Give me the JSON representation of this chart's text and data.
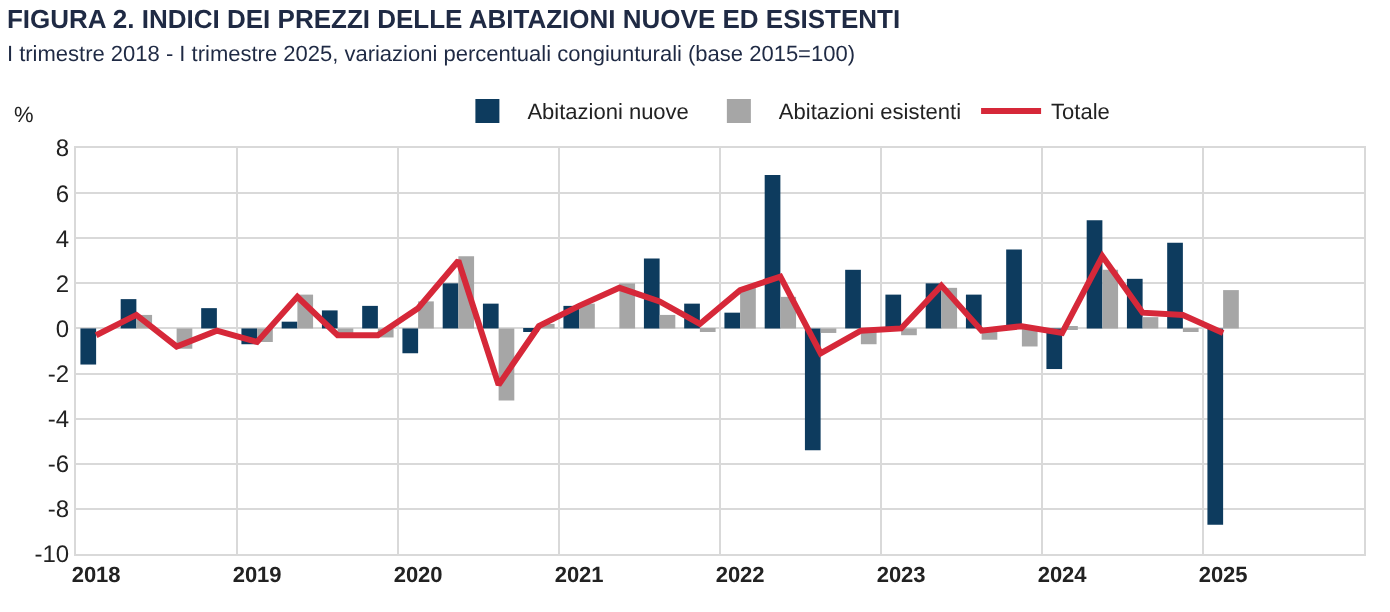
{
  "chart_data": {
    "type": "bar",
    "title": "FIGURA 2. INDICI DEI PREZZI DELLE ABITAZIONI NUOVE ED ESISTENTI",
    "subtitle": "I trimestre 2018 - I trimestre 2025, variazioni percentuali congiunturali (base 2015=100)",
    "ylabel": "%",
    "categories": [
      "2018",
      null,
      null,
      null,
      "2019",
      null,
      null,
      null,
      "2020",
      null,
      null,
      null,
      "2021",
      null,
      null,
      null,
      "2022",
      null,
      null,
      null,
      "2023",
      null,
      null,
      null,
      "2024",
      null,
      null,
      null,
      "2025"
    ],
    "series": [
      {
        "name": "Abitazioni nuove",
        "color": "#0d3b5e",
        "values": [
          -1.6,
          1.3,
          0.0,
          0.9,
          -0.7,
          0.3,
          0.8,
          1.0,
          -1.1,
          2.0,
          1.1,
          -0.1,
          1.0,
          0.0,
          3.1,
          1.1,
          0.7,
          6.8,
          -5.4,
          2.6,
          1.5,
          2.0,
          1.5,
          3.5,
          -1.8,
          4.8,
          2.2,
          3.8,
          -8.7
        ]
      },
      {
        "name": "Abitazioni esistenti",
        "color": "#a6a6a6",
        "values": [
          null,
          0.6,
          -0.9,
          null,
          -0.6,
          1.5,
          -0.3,
          -0.4,
          1.2,
          3.2,
          -3.2,
          0.2,
          1.1,
          2.0,
          0.6,
          -0.1,
          1.8,
          1.4,
          -0.2,
          -0.7,
          -0.3,
          1.8,
          -0.5,
          -0.8,
          0.1,
          2.6,
          0.5,
          -0.1,
          1.7
        ]
      },
      {
        "name": "Totale",
        "type": "line",
        "color": "#d62839",
        "values": [
          -0.3,
          0.6,
          -0.8,
          -0.1,
          -0.6,
          1.4,
          -0.3,
          -0.3,
          0.9,
          3.0,
          -2.5,
          0.1,
          1.0,
          1.8,
          1.2,
          0.2,
          1.7,
          2.3,
          -1.1,
          -0.1,
          0.0,
          1.9,
          -0.1,
          0.1,
          -0.2,
          3.2,
          0.7,
          0.6,
          -0.2
        ]
      }
    ],
    "ylim": [
      -10,
      8
    ],
    "yticks": [
      -10,
      -8,
      -6,
      -4,
      -2,
      0,
      2,
      4,
      6,
      8
    ],
    "grid": true,
    "legend": "top",
    "line_style": "solid",
    "marker": "none"
  }
}
